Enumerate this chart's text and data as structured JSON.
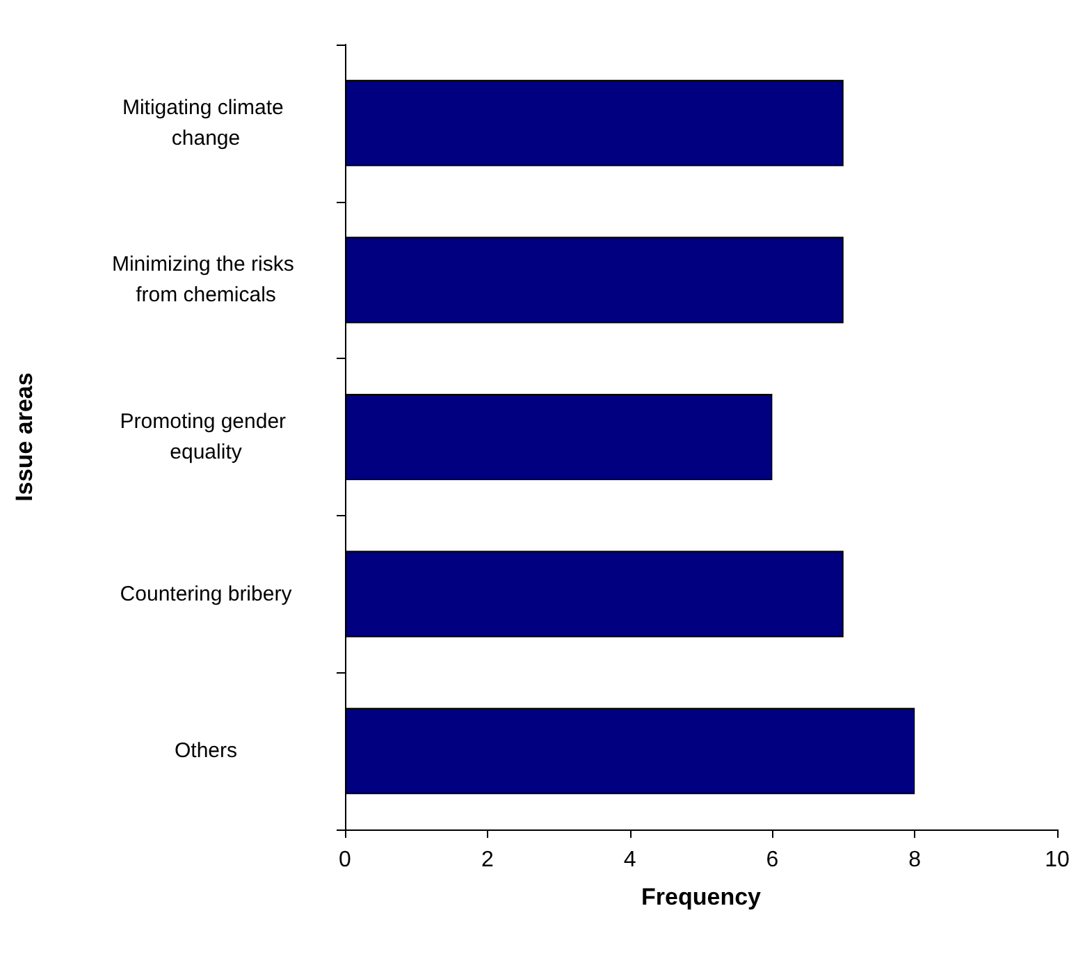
{
  "chart_data": {
    "type": "bar",
    "orientation": "horizontal",
    "xlabel": "Frequency",
    "ylabel": "Issue areas",
    "categories": [
      "Mitigating climate change",
      "Minimizing the risks from chemicals",
      "Promoting gender equality",
      "Countering bribery",
      "Others"
    ],
    "values": [
      7,
      7,
      6,
      7,
      8
    ],
    "color": "#000080",
    "xlim": [
      0,
      10
    ],
    "xticks": [
      0,
      2,
      4,
      6,
      8,
      10
    ],
    "grid": false
  }
}
